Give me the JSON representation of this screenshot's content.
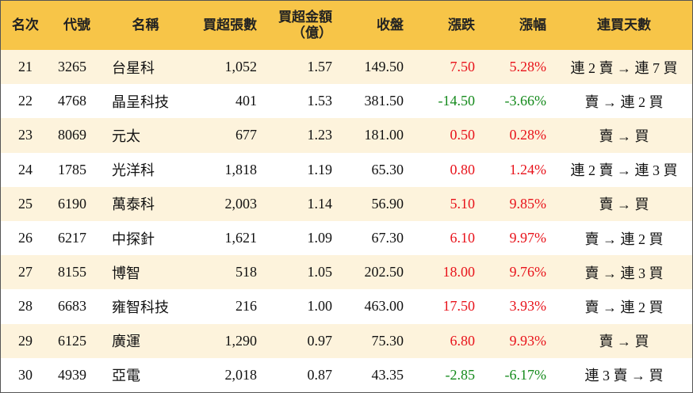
{
  "table": {
    "headers": [
      "名次",
      "代號",
      "名稱",
      "買超張數",
      "買超金額\n（億）",
      "收盤",
      "漲跌",
      "漲幅",
      "連買天數"
    ],
    "up_color": "#e8131b",
    "down_color": "#158a1c",
    "rows": [
      [
        "21",
        "3265",
        "台星科",
        "1,052",
        "1.57",
        "149.50",
        "7.50",
        "5.28%",
        "連 2 賣 → 連 7 買"
      ],
      [
        "22",
        "4768",
        "晶呈科技",
        "401",
        "1.53",
        "381.50",
        "-14.50",
        "-3.66%",
        "賣 → 連 2 買"
      ],
      [
        "23",
        "8069",
        "元太",
        "677",
        "1.23",
        "181.00",
        "0.50",
        "0.28%",
        "賣 → 買"
      ],
      [
        "24",
        "1785",
        "光洋科",
        "1,818",
        "1.19",
        "65.30",
        "0.80",
        "1.24%",
        "連 2 賣 → 連 3 買"
      ],
      [
        "25",
        "6190",
        "萬泰科",
        "2,003",
        "1.14",
        "56.90",
        "5.10",
        "9.85%",
        "賣 → 買"
      ],
      [
        "26",
        "6217",
        "中探針",
        "1,621",
        "1.09",
        "67.30",
        "6.10",
        "9.97%",
        "賣 → 連 2 買"
      ],
      [
        "27",
        "8155",
        "博智",
        "518",
        "1.05",
        "202.50",
        "18.00",
        "9.76%",
        "賣 → 連 3 買"
      ],
      [
        "28",
        "6683",
        "雍智科技",
        "216",
        "1.00",
        "463.00",
        "17.50",
        "3.93%",
        "賣 → 連 2 買"
      ],
      [
        "29",
        "6125",
        "廣運",
        "1,290",
        "0.97",
        "75.30",
        "6.80",
        "9.93%",
        "賣 → 買"
      ],
      [
        "30",
        "4939",
        "亞電",
        "2,018",
        "0.87",
        "43.35",
        "-2.85",
        "-6.17%",
        "連 3 賣 → 買"
      ]
    ]
  }
}
